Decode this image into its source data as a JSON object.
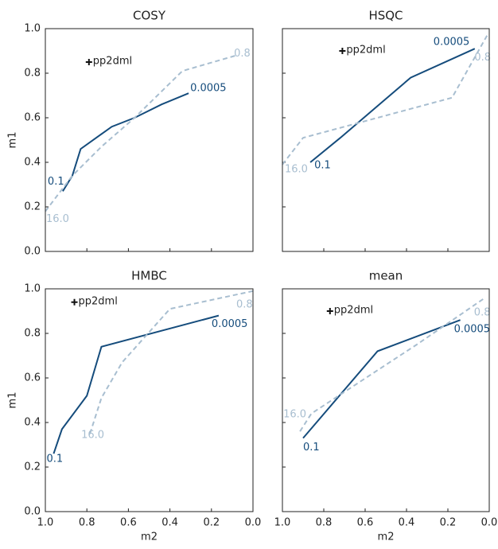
{
  "chart_data": [
    {
      "type": "line",
      "title": "COSY",
      "ylabel": "m1",
      "xlim": [
        1,
        0
      ],
      "ylim": [
        0,
        1
      ],
      "xticks": [
        1,
        0.8,
        0.6,
        0.4,
        0.2,
        0
      ],
      "xtick_labels": false,
      "yticks": [
        {
          "value": 0,
          "label": "0.0"
        },
        0.2,
        0.4,
        0.6,
        0.8,
        {
          "value": 1,
          "label": "1.0"
        }
      ],
      "ytick_labels": true,
      "series": [
        {
          "color": "#154c7c",
          "style": "solid",
          "x": [
            0.916,
            0.87,
            0.83,
            0.68,
            0.57,
            0.44,
            0.31
          ],
          "values": [
            0.27,
            0.34,
            0.46,
            0.56,
            0.6,
            0.66,
            0.71
          ],
          "start_label": "0.1",
          "end_label": "0.0005"
        },
        {
          "color": "#a8bed0",
          "style": "dashed",
          "x": [
            1,
            0.87,
            0.73,
            0.57,
            0.34,
            0.08
          ],
          "values": [
            0.18,
            0.34,
            0.47,
            0.6,
            0.81,
            0.88
          ],
          "start_label": "16.0",
          "end_label": "0.8"
        }
      ],
      "points": [
        {
          "label": "pp2dml",
          "x": 0.79,
          "y": 0.85
        }
      ]
    },
    {
      "type": "line",
      "title": "HSQC",
      "xlim": [
        1,
        0
      ],
      "ylim": [
        0,
        1
      ],
      "xticks": [
        1,
        0.8,
        0.6,
        0.4,
        0.2,
        0
      ],
      "xtick_labels": false,
      "yticks": [
        0,
        0.2,
        0.4,
        0.6,
        0.8,
        1
      ],
      "ytick_labels": false,
      "series": [
        {
          "color": "#154c7c",
          "style": "solid",
          "x": [
            0.865,
            0.72,
            0.38,
            0.07
          ],
          "values": [
            0.4,
            0.51,
            0.78,
            0.91
          ],
          "start_label": "0.1",
          "end_label": "0.0005"
        },
        {
          "color": "#a8bed0",
          "style": "dashed",
          "x": [
            1,
            0.9,
            0.18,
            0.01
          ],
          "values": [
            0.39,
            0.51,
            0.69,
            0.97
          ],
          "start_label": "16.0",
          "end_label": "0.8"
        }
      ],
      "points": [
        {
          "label": "pp2dml",
          "x": 0.71,
          "y": 0.9
        }
      ]
    },
    {
      "type": "line",
      "title": "HMBC",
      "xlabel": "m2",
      "ylabel": "m1",
      "xlim": [
        1,
        0
      ],
      "ylim": [
        0,
        1
      ],
      "xticks": [
        {
          "value": 1,
          "label": "1.0"
        },
        0.8,
        0.6,
        0.4,
        0.2,
        {
          "value": 0,
          "label": "0.0"
        }
      ],
      "xtick_labels": true,
      "yticks": [
        {
          "value": 0,
          "label": "0.0"
        },
        0.2,
        0.4,
        0.6,
        0.8,
        {
          "value": 1,
          "label": "1.0"
        }
      ],
      "ytick_labels": true,
      "series": [
        {
          "color": "#154c7c",
          "style": "solid",
          "x": [
            0.96,
            0.92,
            0.8,
            0.73,
            0.165
          ],
          "values": [
            0.26,
            0.37,
            0.52,
            0.74,
            0.88
          ],
          "start_label": "0.1",
          "end_label": "0.0005"
        },
        {
          "color": "#a8bed0",
          "style": "dashed",
          "x": [
            0.785,
            0.73,
            0.63,
            0.4,
            0
          ],
          "values": [
            0.35,
            0.51,
            0.67,
            0.91,
            0.99
          ],
          "start_label": "16.0",
          "end_label": "0.8"
        }
      ],
      "points": [
        {
          "label": "pp2dml",
          "x": 0.86,
          "y": 0.94
        }
      ]
    },
    {
      "type": "line",
      "title": "mean",
      "xlabel": "m2",
      "xlim": [
        1,
        0
      ],
      "ylim": [
        0,
        1
      ],
      "xticks": [
        {
          "value": 1,
          "label": "1.0"
        },
        0.8,
        0.6,
        0.4,
        0.2,
        {
          "value": 0,
          "label": "0.0"
        }
      ],
      "xtick_labels": true,
      "yticks": [
        0,
        0.2,
        0.4,
        0.6,
        0.8,
        1
      ],
      "ytick_labels": false,
      "series": [
        {
          "color": "#154c7c",
          "style": "solid",
          "x": [
            0.9,
            0.54,
            0.14
          ],
          "values": [
            0.33,
            0.72,
            0.86
          ],
          "start_label": "0.1",
          "end_label": "0.0005"
        },
        {
          "color": "#a8bed0",
          "style": "dashed",
          "x": [
            0.915,
            0.86,
            0.35,
            0.02
          ],
          "values": [
            0.36,
            0.44,
            0.75,
            0.96
          ],
          "start_label": "16.0",
          "end_label": "0.8"
        }
      ],
      "points": [
        {
          "label": "pp2dml",
          "x": 0.77,
          "y": 0.9
        }
      ]
    }
  ]
}
